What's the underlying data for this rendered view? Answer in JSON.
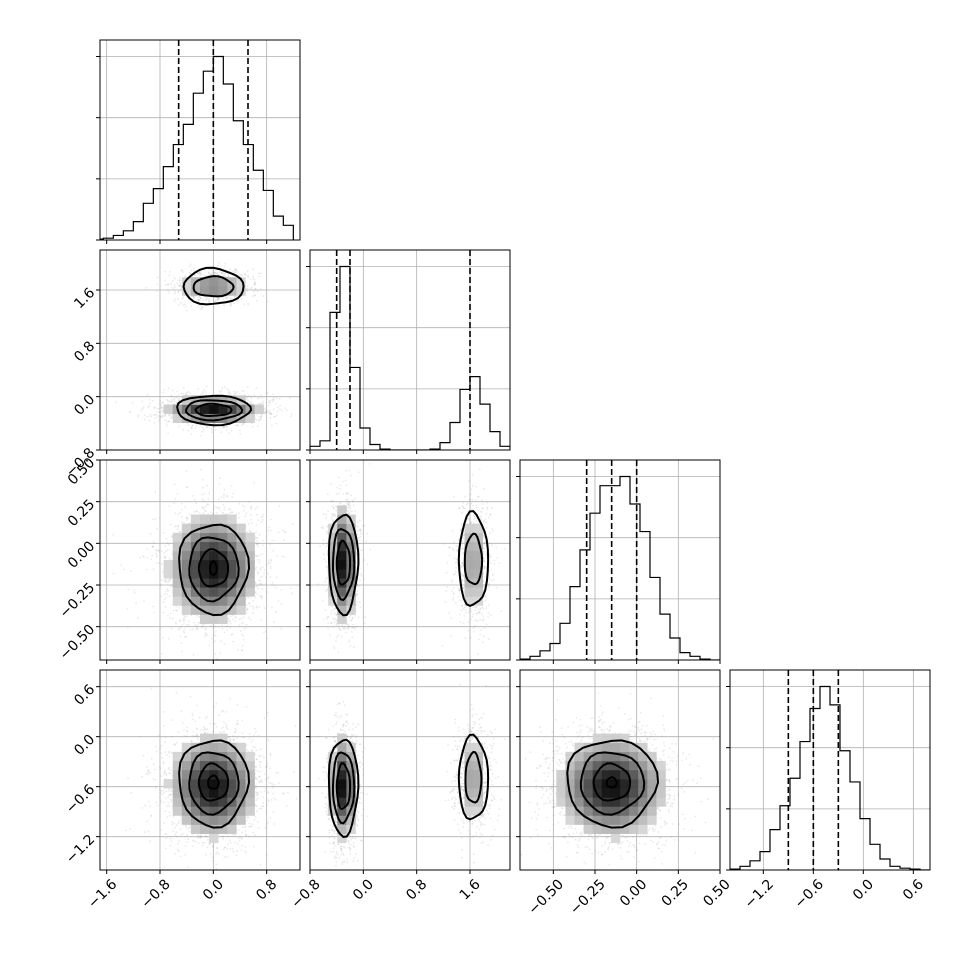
{
  "chart_data": {
    "type": "corner",
    "title": "",
    "parameter_labels": [
      "",
      "",
      "",
      ""
    ],
    "grid": true,
    "colors": {
      "line": "#000000",
      "grid": "#b0b0b0",
      "samples": "#8a8a8a"
    },
    "axes": [
      {
        "range": [
          -1.7,
          1.3
        ],
        "ticks": [
          -1.6,
          -0.8,
          0.0,
          0.8
        ],
        "tick_labels": [
          "−1.6",
          "−0.8",
          "0.0",
          "0.8"
        ]
      },
      {
        "range": [
          -0.8,
          2.2
        ],
        "ticks": [
          -0.8,
          0.0,
          0.8,
          1.6
        ],
        "tick_labels": [
          "−0.8",
          "0.0",
          "0.8",
          "1.6"
        ]
      },
      {
        "range": [
          -0.7,
          0.5
        ],
        "ticks": [
          -0.5,
          -0.25,
          0.0,
          0.25,
          0.5
        ],
        "tick_labels": [
          "−0.50",
          "−0.25",
          "0.00",
          "0.25",
          "0.50"
        ]
      },
      {
        "range": [
          -1.6,
          0.8
        ],
        "ticks": [
          -1.2,
          -0.6,
          0.0,
          0.6
        ],
        "tick_labels": [
          "−1.2",
          "−0.6",
          "0.0",
          "0.6"
        ]
      }
    ],
    "marginals": [
      {
        "param": 0,
        "quantiles": [
          -0.52,
          0.0,
          0.52
        ],
        "bin_edges": [
          -1.8,
          -1.65,
          -1.5,
          -1.35,
          -1.2,
          -1.05,
          -0.9,
          -0.75,
          -0.6,
          -0.45,
          -0.3,
          -0.15,
          0.0,
          0.15,
          0.3,
          0.45,
          0.6,
          0.75,
          0.9,
          1.05,
          1.2
        ],
        "counts": [
          0.005,
          0.01,
          0.025,
          0.05,
          0.1,
          0.2,
          0.28,
          0.4,
          0.52,
          0.63,
          0.8,
          0.92,
          1.0,
          0.85,
          0.65,
          0.52,
          0.38,
          0.27,
          0.13,
          0.08
        ]
      },
      {
        "param": 1,
        "quantiles": [
          -0.4,
          -0.2,
          1.6
        ],
        "bin_edges": [
          -0.8,
          -0.65,
          -0.5,
          -0.35,
          -0.2,
          -0.05,
          0.1,
          0.25,
          0.4,
          0.55,
          0.7,
          0.85,
          1.0,
          1.15,
          1.3,
          1.45,
          1.6,
          1.75,
          1.9,
          2.05,
          2.2
        ],
        "counts": [
          0.02,
          0.05,
          0.75,
          1.0,
          0.45,
          0.12,
          0.03,
          0.005,
          0.0,
          0.0,
          0.0,
          0.0,
          0.005,
          0.04,
          0.15,
          0.33,
          0.4,
          0.25,
          0.1,
          0.02
        ]
      },
      {
        "param": 2,
        "quantiles": [
          -0.3,
          -0.15,
          0.0
        ],
        "bin_edges": [
          -0.7,
          -0.64,
          -0.58,
          -0.52,
          -0.46,
          -0.4,
          -0.34,
          -0.28,
          -0.22,
          -0.16,
          -0.1,
          -0.04,
          0.02,
          0.08,
          0.14,
          0.2,
          0.26,
          0.32,
          0.38,
          0.44,
          0.5
        ],
        "counts": [
          0.005,
          0.02,
          0.05,
          0.09,
          0.2,
          0.4,
          0.6,
          0.8,
          0.95,
          0.95,
          1.0,
          0.85,
          0.7,
          0.45,
          0.25,
          0.12,
          0.04,
          0.02,
          0.005,
          0.0
        ]
      },
      {
        "param": 3,
        "quantiles": [
          -0.9,
          -0.6,
          -0.3
        ],
        "bin_edges": [
          -1.6,
          -1.48,
          -1.36,
          -1.24,
          -1.12,
          -1.0,
          -0.88,
          -0.76,
          -0.64,
          -0.52,
          -0.4,
          -0.28,
          -0.16,
          -0.04,
          0.08,
          0.2,
          0.32,
          0.44,
          0.56,
          0.68,
          0.8
        ],
        "counts": [
          0.005,
          0.02,
          0.05,
          0.1,
          0.22,
          0.35,
          0.5,
          0.7,
          0.88,
          1.0,
          0.9,
          0.65,
          0.48,
          0.28,
          0.14,
          0.06,
          0.02,
          0.01,
          0.005,
          0.0
        ]
      }
    ],
    "pairs": [
      {
        "x": 0,
        "y": 1,
        "modes": [
          {
            "center": [
              0.0,
              -0.2
            ],
            "sigma": [
              0.35,
              0.1
            ],
            "weight": 0.7
          },
          {
            "center": [
              0.0,
              1.65
            ],
            "sigma": [
              0.27,
              0.12
            ],
            "weight": 0.3
          }
        ],
        "contours": [
          {
            "center": [
              0.0,
              -0.2
            ],
            "radii": [
              [
                0.55,
                0.22
              ],
              [
                0.42,
                0.15
              ],
              [
                0.27,
                0.09
              ]
            ]
          },
          {
            "center": [
              0.0,
              1.65
            ],
            "radii": [
              [
                0.45,
                0.27
              ],
              [
                0.3,
                0.15
              ]
            ]
          }
        ]
      },
      {
        "x": 0,
        "y": 2,
        "modes": [
          {
            "center": [
              0.0,
              -0.15
            ],
            "sigma": [
              0.33,
              0.16
            ],
            "weight": 1.0
          }
        ],
        "contours": [
          {
            "center": [
              0.0,
              -0.15
            ],
            "radii": [
              [
                0.52,
                0.27
              ],
              [
                0.37,
                0.19
              ],
              [
                0.22,
                0.11
              ],
              [
                0.05,
                0.04
              ]
            ]
          }
        ]
      },
      {
        "x": 1,
        "y": 2,
        "modes": [
          {
            "center": [
              -0.3,
              -0.12
            ],
            "sigma": [
              0.1,
              0.17
            ],
            "weight": 0.7
          },
          {
            "center": [
              1.65,
              -0.12
            ],
            "sigma": [
              0.13,
              0.17
            ],
            "weight": 0.3
          }
        ],
        "contours": [
          {
            "center": [
              -0.3,
              -0.12
            ],
            "radii": [
              [
                0.22,
                0.3
              ],
              [
                0.16,
                0.21
              ],
              [
                0.1,
                0.13
              ]
            ]
          },
          {
            "center": [
              1.65,
              -0.1
            ],
            "radii": [
              [
                0.22,
                0.28
              ],
              [
                0.13,
                0.15
              ]
            ]
          }
        ]
      },
      {
        "x": 0,
        "y": 3,
        "modes": [
          {
            "center": [
              0.0,
              -0.6
            ],
            "sigma": [
              0.33,
              0.3
            ],
            "weight": 1.0
          }
        ],
        "contours": [
          {
            "center": [
              0.0,
              -0.55
            ],
            "radii": [
              [
                0.52,
                0.52
              ],
              [
                0.37,
                0.37
              ],
              [
                0.22,
                0.22
              ],
              [
                0.08,
                0.08
              ]
            ]
          }
        ]
      },
      {
        "x": 1,
        "y": 3,
        "modes": [
          {
            "center": [
              -0.3,
              -0.6
            ],
            "sigma": [
              0.1,
              0.3
            ],
            "weight": 0.7
          },
          {
            "center": [
              1.65,
              -0.5
            ],
            "sigma": [
              0.13,
              0.3
            ],
            "weight": 0.3
          }
        ],
        "contours": [
          {
            "center": [
              -0.3,
              -0.6
            ],
            "radii": [
              [
                0.22,
                0.58
              ],
              [
                0.16,
                0.42
              ],
              [
                0.1,
                0.27
              ]
            ]
          },
          {
            "center": [
              1.65,
              -0.5
            ],
            "radii": [
              [
                0.22,
                0.5
              ],
              [
                0.12,
                0.3
              ]
            ]
          }
        ]
      },
      {
        "x": 2,
        "y": 3,
        "modes": [
          {
            "center": [
              -0.15,
              -0.6
            ],
            "sigma": [
              0.16,
              0.3
            ],
            "weight": 1.0
          }
        ],
        "contours": [
          {
            "center": [
              -0.15,
              -0.55
            ],
            "radii": [
              [
                0.27,
                0.52
              ],
              [
                0.19,
                0.37
              ],
              [
                0.11,
                0.22
              ],
              [
                0.03,
                0.06
              ]
            ]
          }
        ]
      }
    ]
  }
}
